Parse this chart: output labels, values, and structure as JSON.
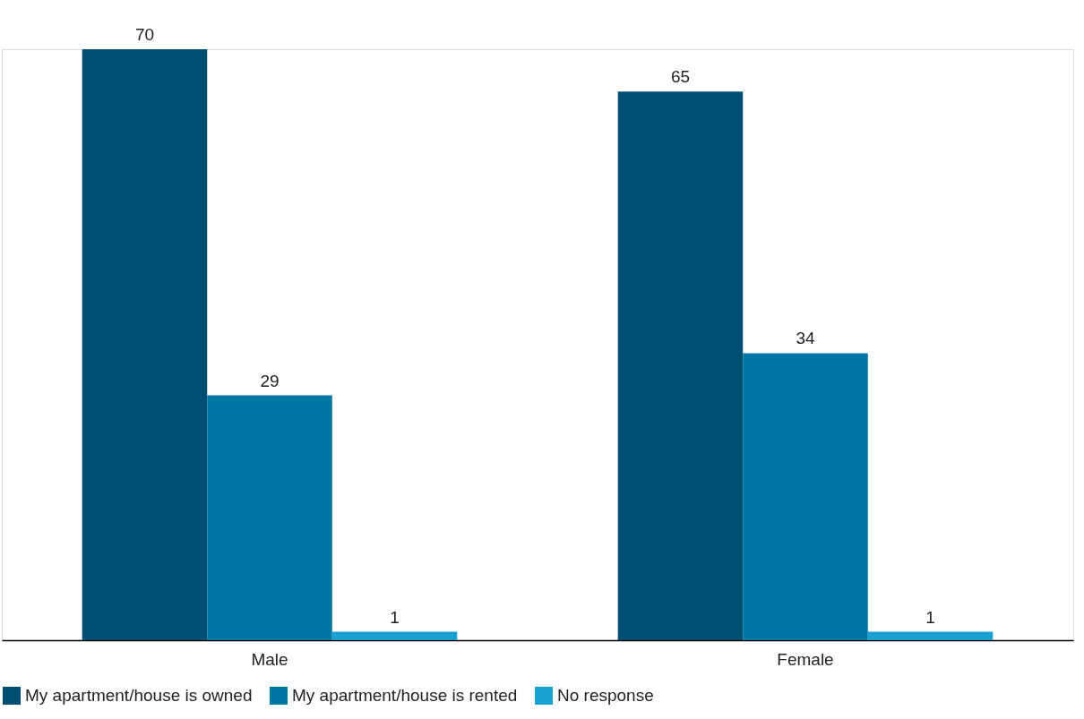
{
  "chart_data": {
    "type": "bar",
    "categories": [
      "Male",
      "Female"
    ],
    "series": [
      {
        "name": "My apartment/house is owned",
        "color": "#004f73",
        "values": [
          70,
          65
        ]
      },
      {
        "name": "My apartment/house is rented",
        "color": "#0077a3",
        "values": [
          29,
          34
        ]
      },
      {
        "name": "No response",
        "color": "#1aa0d1",
        "values": [
          1,
          1
        ]
      }
    ],
    "data_labels": true,
    "legend": "bottom",
    "grid": false
  }
}
